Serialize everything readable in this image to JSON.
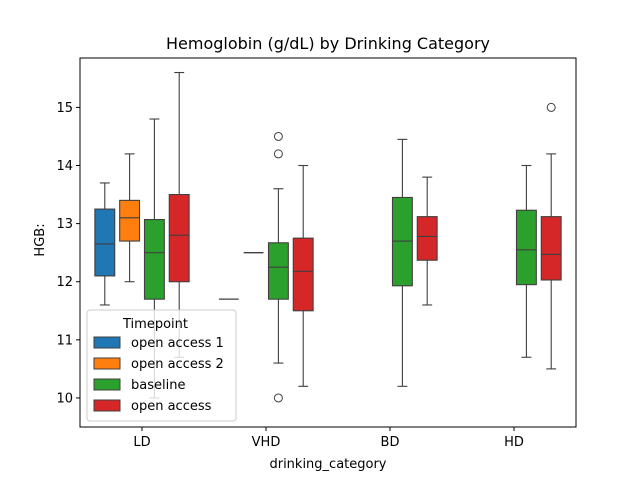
{
  "chart_data": {
    "type": "box",
    "title": "Hemoglobin (g/dL) by Drinking Category",
    "xlabel": "drinking_category",
    "ylabel": "HGB:",
    "categories": [
      "LD",
      "VHD",
      "BD",
      "HD"
    ],
    "ylim": [
      9.5,
      15.85
    ],
    "yticks": [
      10,
      11,
      12,
      13,
      14,
      15
    ],
    "grid": false,
    "legend": {
      "title": "Timepoint",
      "placement": "lower-left",
      "entries": [
        "open access 1",
        "open access 2",
        "baseline",
        "open access"
      ]
    },
    "series": [
      {
        "name": "open access 1",
        "color": "#1f77b4",
        "boxes": [
          {
            "category": "LD",
            "whislo": 11.6,
            "q1": 12.1,
            "med": 12.65,
            "q3": 13.25,
            "whishi": 13.7,
            "fliers": []
          }
        ]
      },
      {
        "name": "open access 2",
        "color": "#ff7f0e",
        "boxes": [
          {
            "category": "LD",
            "whislo": 12.0,
            "q1": 12.7,
            "med": 13.1,
            "q3": 13.4,
            "whishi": 14.2,
            "fliers": []
          }
        ]
      },
      {
        "name": "baseline",
        "color": "#2ca02c",
        "boxes": [
          {
            "category": "LD",
            "whislo": 10.0,
            "q1": 11.7,
            "med": 12.5,
            "q3": 13.07,
            "whishi": 14.8,
            "fliers": []
          },
          {
            "category": "VHD",
            "whislo": 10.6,
            "q1": 11.7,
            "med": 12.25,
            "q3": 12.67,
            "whishi": 13.6,
            "fliers": [
              10.0,
              14.2,
              14.5
            ]
          },
          {
            "category": "BD",
            "whislo": 10.2,
            "q1": 11.93,
            "med": 12.7,
            "q3": 13.45,
            "whishi": 14.45,
            "fliers": []
          },
          {
            "category": "HD",
            "whislo": 10.7,
            "q1": 11.95,
            "med": 12.55,
            "q3": 13.23,
            "whishi": 14.0,
            "fliers": []
          }
        ]
      },
      {
        "name": "open access",
        "color": "#d62728",
        "boxes": [
          {
            "category": "LD",
            "whislo": 10.7,
            "q1": 12.0,
            "med": 12.8,
            "q3": 13.5,
            "whishi": 15.6,
            "fliers": []
          },
          {
            "category": "VHD",
            "whislo": 10.2,
            "q1": 11.5,
            "med": 12.18,
            "q3": 12.75,
            "whishi": 14.0,
            "fliers": []
          },
          {
            "category": "BD",
            "whislo": 11.6,
            "q1": 12.37,
            "med": 12.78,
            "q3": 13.12,
            "whishi": 13.8,
            "fliers": []
          },
          {
            "category": "HD",
            "whislo": 10.5,
            "q1": 12.03,
            "med": 12.47,
            "q3": 13.12,
            "whishi": 14.2,
            "fliers": [
              15.0
            ]
          }
        ]
      }
    ],
    "lines": [
      {
        "category": "VHD",
        "slot": 0,
        "value": 11.7,
        "color": "#1f77b4"
      },
      {
        "category": "VHD",
        "slot": 1,
        "value": 12.5,
        "color": "#ff7f0e"
      }
    ]
  }
}
